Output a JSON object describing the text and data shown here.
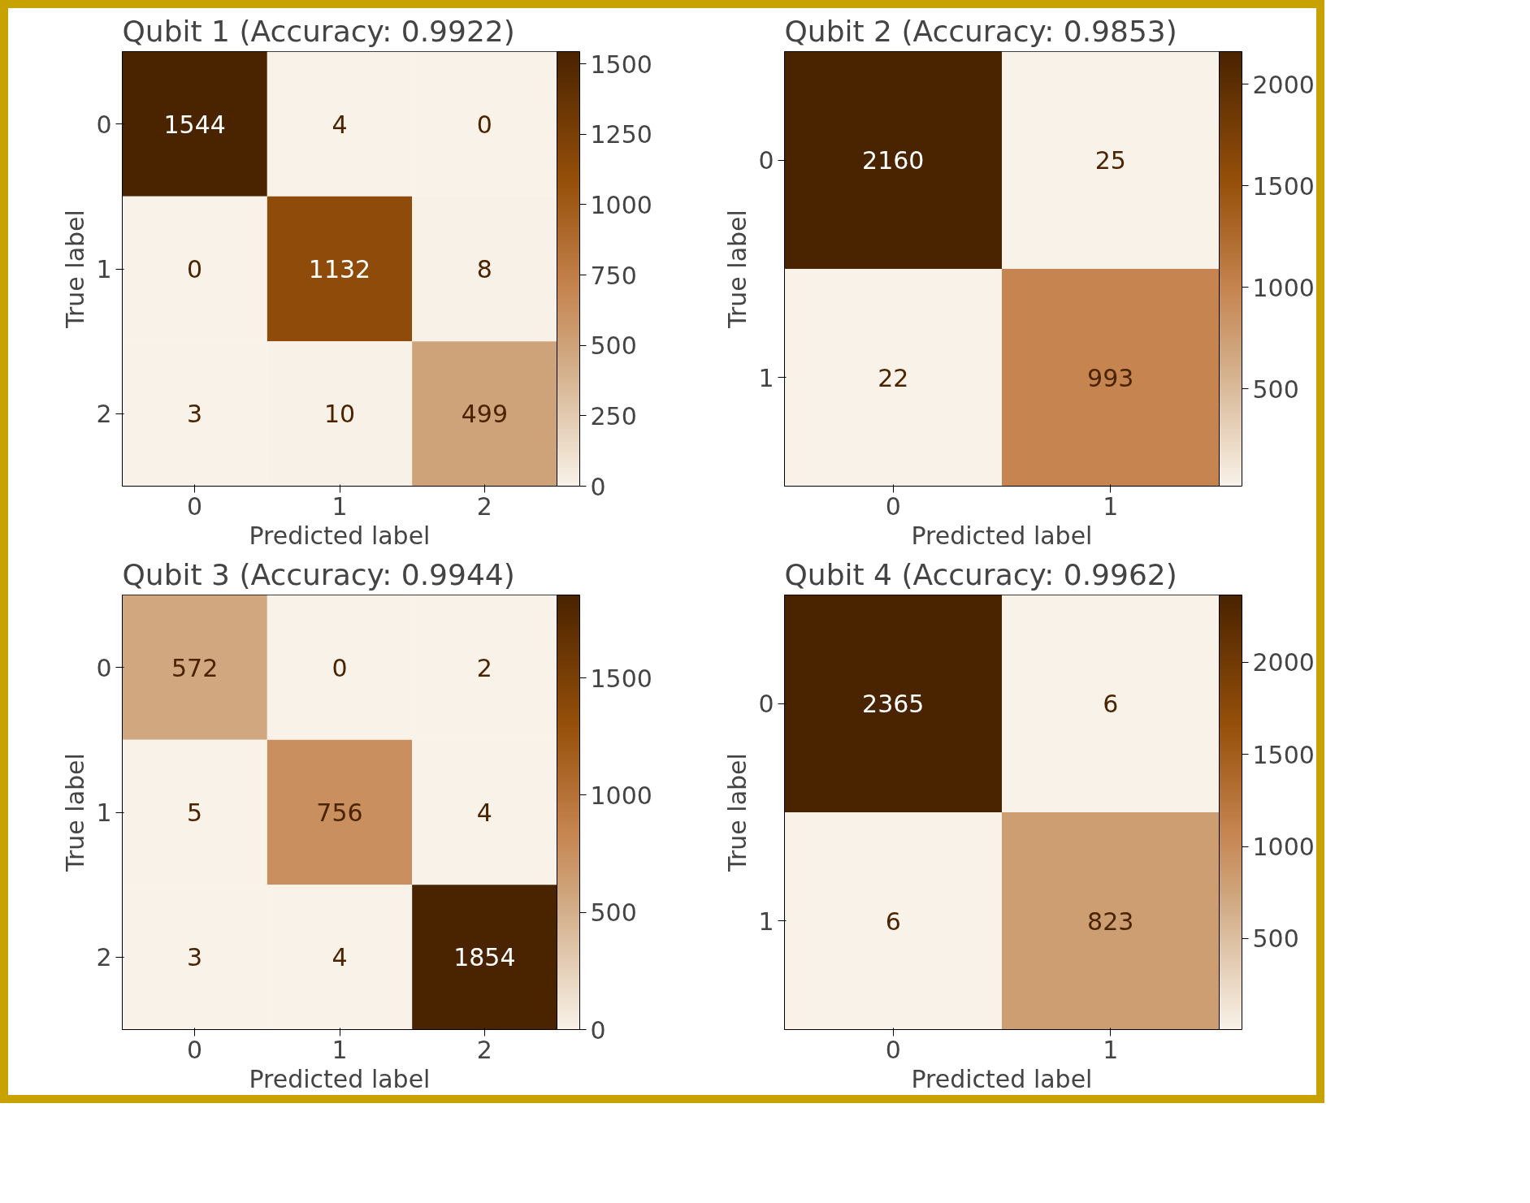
{
  "chart_data": [
    {
      "type": "heatmap",
      "title": "Qubit 1 (Accuracy: 0.9922)",
      "xlabel": "Predicted label",
      "ylabel": "True label",
      "categories": [
        "0",
        "1",
        "2"
      ],
      "y_categories": [
        "0",
        "1",
        "2"
      ],
      "cells": [
        [
          1544,
          4,
          0
        ],
        [
          0,
          1132,
          8
        ],
        [
          3,
          10,
          499
        ]
      ],
      "clim": [
        0,
        1544
      ],
      "cticks": [
        0,
        250,
        500,
        750,
        1000,
        1250,
        1500
      ],
      "data_labels": true
    },
    {
      "type": "heatmap",
      "title": "Qubit 2 (Accuracy: 0.9853)",
      "xlabel": "Predicted label",
      "ylabel": "True label",
      "categories": [
        "0",
        "1"
      ],
      "y_categories": [
        "0",
        "1"
      ],
      "cells": [
        [
          2160,
          25
        ],
        [
          22,
          993
        ]
      ],
      "clim": [
        22,
        2160
      ],
      "cticks": [
        500,
        1000,
        1500,
        2000
      ],
      "data_labels": true
    },
    {
      "type": "heatmap",
      "title": "Qubit 3 (Accuracy: 0.9944)",
      "xlabel": "Predicted label",
      "ylabel": "True label",
      "categories": [
        "0",
        "1",
        "2"
      ],
      "y_categories": [
        "0",
        "1",
        "2"
      ],
      "cells": [
        [
          572,
          0,
          2
        ],
        [
          5,
          756,
          4
        ],
        [
          3,
          4,
          1854
        ]
      ],
      "clim": [
        0,
        1854
      ],
      "cticks": [
        0,
        500,
        1000,
        1500
      ],
      "data_labels": true
    },
    {
      "type": "heatmap",
      "title": "Qubit 4 (Accuracy: 0.9962)",
      "xlabel": "Predicted label",
      "ylabel": "True label",
      "categories": [
        "0",
        "1"
      ],
      "y_categories": [
        "0",
        "1"
      ],
      "cells": [
        [
          2365,
          6
        ],
        [
          6,
          823
        ]
      ],
      "clim": [
        6,
        2365
      ],
      "cticks": [
        500,
        1000,
        1500,
        2000
      ],
      "data_labels": true
    }
  ]
}
